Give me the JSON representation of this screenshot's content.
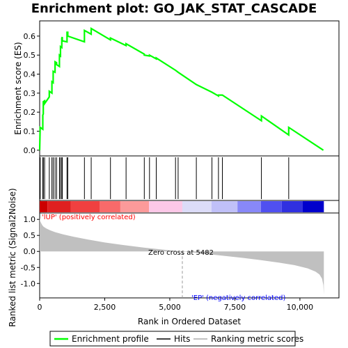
{
  "chart_data": {
    "type": "line",
    "title": "Enrichment plot: GO_JAK_STAT_CASCADE",
    "colors": {
      "enrichment": "#00ff00",
      "hits": "#000000",
      "metric_fill": "#c0c0c0",
      "positive_label": "#ff0000",
      "negative_label": "#0000ff"
    },
    "x_axis": {
      "label": "Rank in Ordered Dataset",
      "range": [
        0,
        11500
      ],
      "ticks": [
        0,
        2500,
        5000,
        7500,
        10000
      ],
      "tick_labels": [
        "0",
        "2,500",
        "5,000",
        "7,500",
        "10,000"
      ]
    },
    "top_panel": {
      "ylabel": "Enrichment score (ES)",
      "ylim": [
        -0.03,
        0.68
      ],
      "yticks": [
        0.0,
        0.1,
        0.2,
        0.3,
        0.4,
        0.5,
        0.6
      ],
      "ytick_labels": [
        "0.0",
        "0.1",
        "0.2",
        "0.3",
        "0.4",
        "0.5",
        "0.6"
      ],
      "series": [
        {
          "name": "Enrichment profile",
          "x": [
            0,
            20,
            20,
            120,
            120,
            140,
            140,
            190,
            190,
            370,
            370,
            470,
            470,
            520,
            520,
            590,
            590,
            650,
            650,
            760,
            760,
            800,
            800,
            850,
            850,
            870,
            870,
            1050,
            1050,
            1080,
            1080,
            1720,
            1720,
            1980,
            1980,
            2720,
            2720,
            3320,
            3320,
            4020,
            4020,
            4220,
            4220,
            4480,
            4480,
            5220,
            5220,
            5320,
            5320,
            6020,
            6020,
            6620,
            6620,
            6870,
            6870,
            7020,
            7020,
            8520,
            8520,
            9570,
            9570,
            10900
          ],
          "y": [
            0.0,
            0.12,
            0.12,
            0.11,
            0.185,
            0.19,
            0.255,
            0.26,
            0.245,
            0.28,
            0.31,
            0.3,
            0.36,
            0.355,
            0.415,
            0.41,
            0.465,
            0.46,
            0.45,
            0.44,
            0.5,
            0.495,
            0.545,
            0.54,
            0.59,
            0.595,
            0.575,
            0.57,
            0.62,
            0.62,
            0.6,
            0.57,
            0.63,
            0.61,
            0.64,
            0.58,
            0.59,
            0.55,
            0.56,
            0.505,
            0.5,
            0.495,
            0.5,
            0.48,
            0.485,
            0.42,
            0.42,
            0.41,
            0.41,
            0.345,
            0.345,
            0.305,
            0.305,
            0.285,
            0.29,
            0.29,
            0.29,
            0.155,
            0.18,
            0.08,
            0.12,
            0.0
          ]
        }
      ]
    },
    "hits_panel": {
      "name": "Hits",
      "positions": [
        20,
        120,
        140,
        190,
        370,
        470,
        520,
        590,
        650,
        760,
        800,
        850,
        870,
        1050,
        1080,
        1720,
        1980,
        2720,
        3320,
        4020,
        4220,
        4480,
        5220,
        5320,
        6020,
        6620,
        6870,
        7020,
        8520,
        9570
      ]
    },
    "metric_panel": {
      "name": "Ranking metric scores",
      "ylabel": "Ranked list metric (Signal2Noise)",
      "ylim": [
        -1.45,
        1.2
      ],
      "yticks": [
        1.0,
        0.5,
        0.0,
        -0.5,
        -1.0
      ],
      "ytick_labels": [
        "1.0",
        "0.5",
        "0.0",
        "-0.5",
        "-1.0"
      ],
      "curve_x": [
        0,
        20,
        60,
        100,
        150,
        250,
        400,
        600,
        900,
        1300,
        1800,
        2500,
        3200,
        4000,
        4800,
        5482,
        6200,
        7000,
        7800,
        8500,
        9200,
        9800,
        10300,
        10600,
        10750,
        10850,
        10900,
        10920
      ],
      "curve_y": [
        1.05,
        0.95,
        0.88,
        0.82,
        0.77,
        0.72,
        0.66,
        0.6,
        0.53,
        0.46,
        0.38,
        0.28,
        0.2,
        0.12,
        0.05,
        0.0,
        -0.06,
        -0.13,
        -0.2,
        -0.27,
        -0.35,
        -0.43,
        -0.53,
        -0.63,
        -0.72,
        -0.85,
        -1.05,
        -1.35
      ],
      "zero_cross": 5482,
      "zero_cross_label": "Zero cross at 5482",
      "positive_label": "'lUP' (positively correlated)",
      "negative_label": "'EP' (negatively correlated)"
    },
    "heat_bar": {
      "segments": [
        {
          "start": 0,
          "end": 300,
          "color": "#cc0000"
        },
        {
          "start": 300,
          "end": 1200,
          "color": "#e02020"
        },
        {
          "start": 1200,
          "end": 2300,
          "color": "#f04040"
        },
        {
          "start": 2300,
          "end": 3100,
          "color": "#f86a6a"
        },
        {
          "start": 3100,
          "end": 4200,
          "color": "#fc9a9a"
        },
        {
          "start": 4200,
          "end": 5482,
          "color": "#fcc8e8"
        },
        {
          "start": 5482,
          "end": 6600,
          "color": "#dcdcf8"
        },
        {
          "start": 6600,
          "end": 7600,
          "color": "#c0c0f8"
        },
        {
          "start": 7600,
          "end": 8500,
          "color": "#8888f8"
        },
        {
          "start": 8500,
          "end": 9300,
          "color": "#5050f0"
        },
        {
          "start": 9300,
          "end": 10100,
          "color": "#3030e0"
        },
        {
          "start": 10100,
          "end": 10920,
          "color": "#0000cc"
        }
      ]
    },
    "legend": {
      "entries": [
        "Enrichment profile",
        "Hits",
        "Ranking metric scores"
      ]
    }
  }
}
